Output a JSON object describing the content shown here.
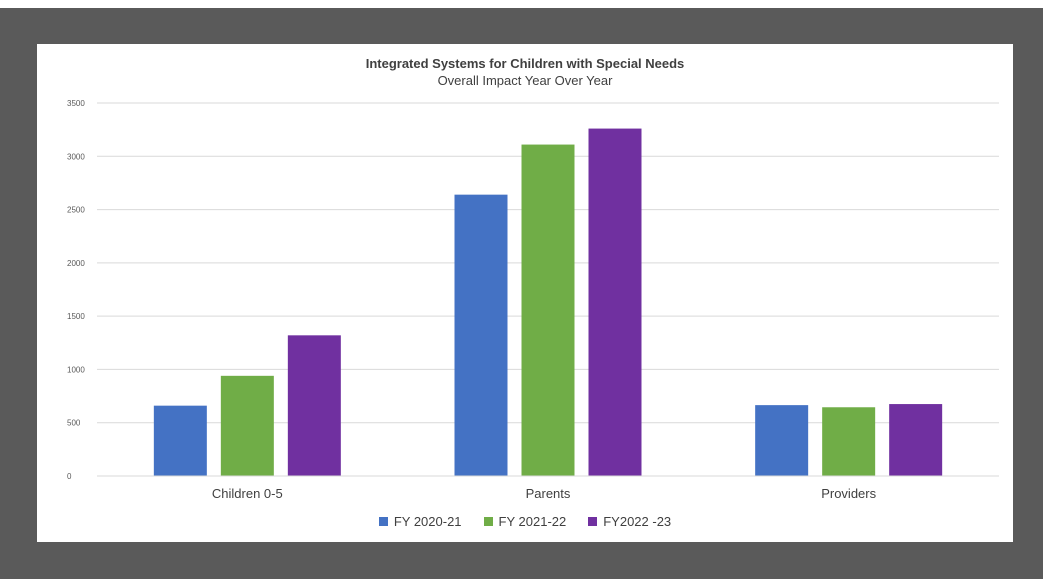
{
  "chart_data": {
    "type": "bar",
    "title": "Integrated Systems for Children with Special Needs",
    "subtitle": "Overall Impact Year Over Year",
    "categories": [
      "Children 0-5",
      "Parents",
      "Providers"
    ],
    "series": [
      {
        "name": "FY 2020-21",
        "color": "#4472c4",
        "values": [
          660,
          2640,
          665
        ]
      },
      {
        "name": "FY 2021-22",
        "color": "#70ad47",
        "values": [
          940,
          3110,
          645
        ]
      },
      {
        "name": "FY2022 -23",
        "color": "#7030a0",
        "values": [
          1320,
          3260,
          675
        ]
      }
    ],
    "ylim": [
      0,
      3500
    ],
    "yticks": [
      "0",
      "500",
      "1000",
      "1500",
      "2000",
      "2500",
      "3000",
      "3500"
    ],
    "grid": true,
    "legend": "bottom"
  }
}
